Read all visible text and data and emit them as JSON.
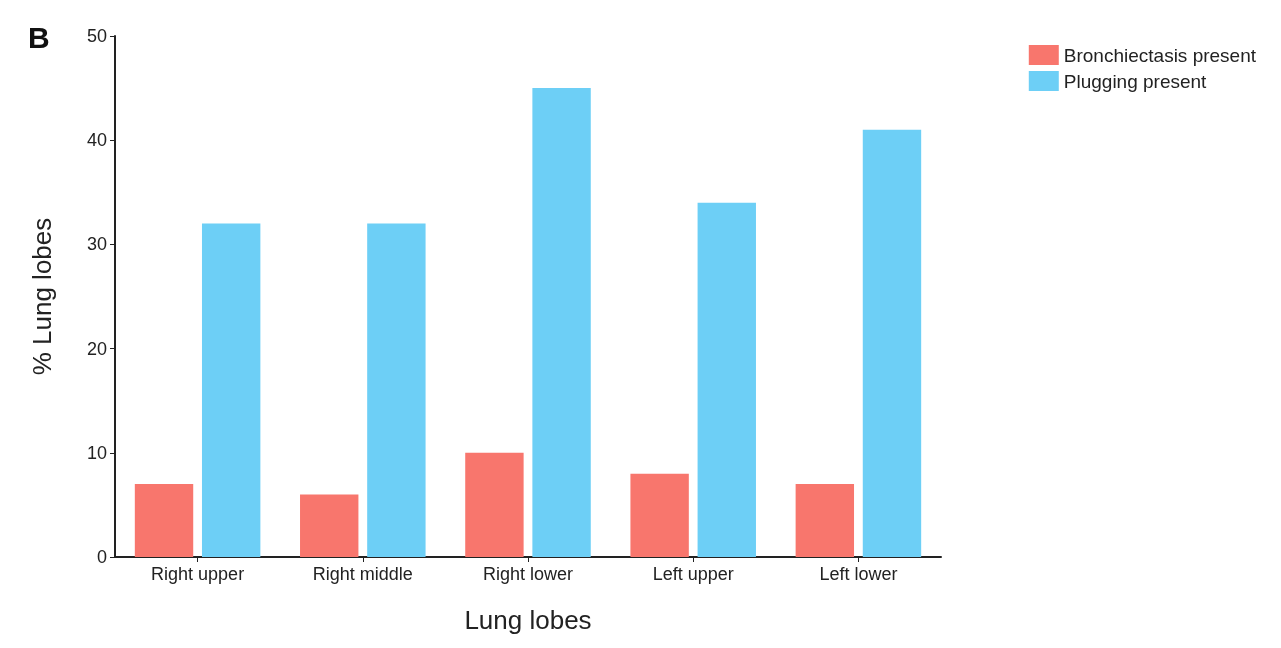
{
  "chart_data": {
    "type": "bar",
    "annotations": [
      "B"
    ],
    "xlabel": "Lung lobes",
    "ylabel": "% Lung lobes",
    "categories": [
      "Right upper",
      "Right middle",
      "Right lower",
      "Left upper",
      "Left lower"
    ],
    "series": [
      {
        "name": "Bronchiectasis present",
        "color": "#f8766d",
        "values": [
          7,
          6,
          10,
          8,
          7
        ]
      },
      {
        "name": "Plugging present",
        "color": "#6dcff6",
        "values": [
          32,
          32,
          45,
          34,
          41
        ]
      }
    ],
    "ylim": [
      0,
      50
    ],
    "yticks": [
      0,
      10,
      20,
      30,
      40,
      50
    ],
    "grid": false,
    "legend": "top right"
  }
}
